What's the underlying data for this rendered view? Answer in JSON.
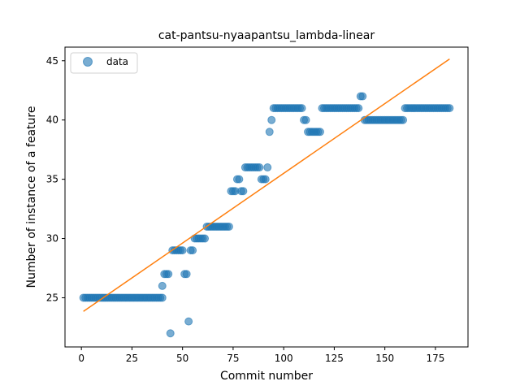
{
  "chart_data": {
    "type": "scatter",
    "title": "cat-pantsu-nyaapantsu_lambda-linear",
    "xlabel": "Commit number",
    "ylabel": "Number of instance of a feature",
    "xlim": [
      -8.1,
      191.1
    ],
    "ylim": [
      20.85,
      46.15
    ],
    "xticks": [
      0,
      25,
      50,
      75,
      100,
      125,
      150,
      175
    ],
    "yticks": [
      25,
      30,
      35,
      40,
      45
    ],
    "grid": false,
    "legend": {
      "placement": "top-left",
      "entries": [
        "data"
      ]
    },
    "colors": {
      "data": "#1f77b4",
      "fit": "#ff7f0e"
    },
    "series": [
      {
        "name": "data",
        "kind": "points",
        "points": [
          [
            1,
            25
          ],
          [
            2,
            25
          ],
          [
            3,
            25
          ],
          [
            4,
            25
          ],
          [
            5,
            25
          ],
          [
            6,
            25
          ],
          [
            7,
            25
          ],
          [
            8,
            25
          ],
          [
            9,
            25
          ],
          [
            10,
            25
          ],
          [
            11,
            25
          ],
          [
            12,
            25
          ],
          [
            13,
            25
          ],
          [
            14,
            25
          ],
          [
            15,
            25
          ],
          [
            16,
            25
          ],
          [
            17,
            25
          ],
          [
            18,
            25
          ],
          [
            19,
            25
          ],
          [
            20,
            25
          ],
          [
            21,
            25
          ],
          [
            22,
            25
          ],
          [
            23,
            25
          ],
          [
            24,
            25
          ],
          [
            25,
            25
          ],
          [
            26,
            25
          ],
          [
            27,
            25
          ],
          [
            28,
            25
          ],
          [
            29,
            25
          ],
          [
            30,
            25
          ],
          [
            31,
            25
          ],
          [
            32,
            25
          ],
          [
            33,
            25
          ],
          [
            34,
            25
          ],
          [
            35,
            25
          ],
          [
            36,
            25
          ],
          [
            37,
            25
          ],
          [
            38,
            25
          ],
          [
            39,
            25
          ],
          [
            40,
            25
          ],
          [
            40,
            26
          ],
          [
            41,
            27
          ],
          [
            42,
            27
          ],
          [
            43,
            27
          ],
          [
            44,
            22
          ],
          [
            45,
            29
          ],
          [
            46,
            29
          ],
          [
            47,
            29
          ],
          [
            48,
            29
          ],
          [
            49,
            29
          ],
          [
            50,
            29
          ],
          [
            51,
            27
          ],
          [
            52,
            27
          ],
          [
            53,
            23
          ],
          [
            54,
            29
          ],
          [
            55,
            29
          ],
          [
            56,
            30
          ],
          [
            57,
            30
          ],
          [
            58,
            30
          ],
          [
            59,
            30
          ],
          [
            60,
            30
          ],
          [
            61,
            30
          ],
          [
            62,
            31
          ],
          [
            63,
            31
          ],
          [
            64,
            31
          ],
          [
            65,
            31
          ],
          [
            66,
            31
          ],
          [
            67,
            31
          ],
          [
            68,
            31
          ],
          [
            69,
            31
          ],
          [
            70,
            31
          ],
          [
            71,
            31
          ],
          [
            72,
            31
          ],
          [
            73,
            31
          ],
          [
            74,
            34
          ],
          [
            75,
            34
          ],
          [
            76,
            34
          ],
          [
            77,
            35
          ],
          [
            78,
            35
          ],
          [
            79,
            34
          ],
          [
            80,
            34
          ],
          [
            81,
            36
          ],
          [
            82,
            36
          ],
          [
            83,
            36
          ],
          [
            84,
            36
          ],
          [
            85,
            36
          ],
          [
            86,
            36
          ],
          [
            87,
            36
          ],
          [
            88,
            36
          ],
          [
            89,
            35
          ],
          [
            90,
            35
          ],
          [
            91,
            35
          ],
          [
            92,
            36
          ],
          [
            93,
            39
          ],
          [
            94,
            40
          ],
          [
            95,
            41
          ],
          [
            96,
            41
          ],
          [
            97,
            41
          ],
          [
            98,
            41
          ],
          [
            99,
            41
          ],
          [
            100,
            41
          ],
          [
            101,
            41
          ],
          [
            102,
            41
          ],
          [
            103,
            41
          ],
          [
            104,
            41
          ],
          [
            105,
            41
          ],
          [
            106,
            41
          ],
          [
            107,
            41
          ],
          [
            108,
            41
          ],
          [
            109,
            41
          ],
          [
            110,
            40
          ],
          [
            111,
            40
          ],
          [
            112,
            39
          ],
          [
            113,
            39
          ],
          [
            114,
            39
          ],
          [
            115,
            39
          ],
          [
            116,
            39
          ],
          [
            117,
            39
          ],
          [
            118,
            39
          ],
          [
            119,
            41
          ],
          [
            120,
            41
          ],
          [
            121,
            41
          ],
          [
            122,
            41
          ],
          [
            123,
            41
          ],
          [
            124,
            41
          ],
          [
            125,
            41
          ],
          [
            126,
            41
          ],
          [
            127,
            41
          ],
          [
            128,
            41
          ],
          [
            129,
            41
          ],
          [
            130,
            41
          ],
          [
            131,
            41
          ],
          [
            132,
            41
          ],
          [
            133,
            41
          ],
          [
            134,
            41
          ],
          [
            135,
            41
          ],
          [
            136,
            41
          ],
          [
            137,
            41
          ],
          [
            138,
            42
          ],
          [
            139,
            42
          ],
          [
            140,
            40
          ],
          [
            141,
            40
          ],
          [
            142,
            40
          ],
          [
            143,
            40
          ],
          [
            144,
            40
          ],
          [
            145,
            40
          ],
          [
            146,
            40
          ],
          [
            147,
            40
          ],
          [
            148,
            40
          ],
          [
            149,
            40
          ],
          [
            150,
            40
          ],
          [
            151,
            40
          ],
          [
            152,
            40
          ],
          [
            153,
            40
          ],
          [
            154,
            40
          ],
          [
            155,
            40
          ],
          [
            156,
            40
          ],
          [
            157,
            40
          ],
          [
            158,
            40
          ],
          [
            159,
            40
          ],
          [
            160,
            41
          ],
          [
            161,
            41
          ],
          [
            162,
            41
          ],
          [
            163,
            41
          ],
          [
            164,
            41
          ],
          [
            165,
            41
          ],
          [
            166,
            41
          ],
          [
            167,
            41
          ],
          [
            168,
            41
          ],
          [
            169,
            41
          ],
          [
            170,
            41
          ],
          [
            171,
            41
          ],
          [
            172,
            41
          ],
          [
            173,
            41
          ],
          [
            174,
            41
          ],
          [
            175,
            41
          ],
          [
            176,
            41
          ],
          [
            177,
            41
          ],
          [
            178,
            41
          ],
          [
            179,
            41
          ],
          [
            180,
            41
          ],
          [
            181,
            41
          ],
          [
            182,
            41
          ]
        ]
      },
      {
        "name": "",
        "kind": "line",
        "points": [
          [
            1,
            23.85
          ],
          [
            182,
            45.15
          ]
        ]
      }
    ]
  }
}
